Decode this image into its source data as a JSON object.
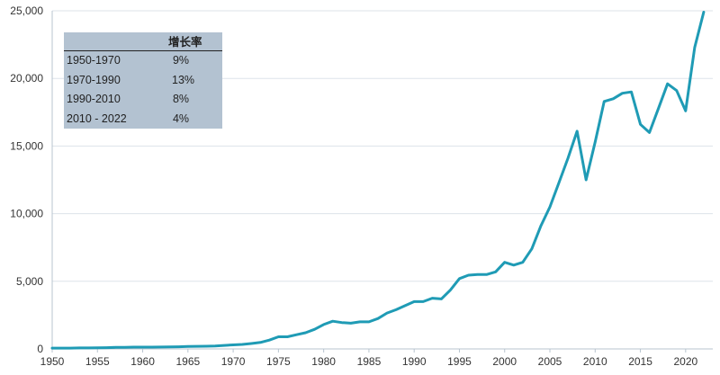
{
  "chart_data": {
    "type": "line",
    "title": "",
    "xlabel": "",
    "ylabel": "",
    "xlim": [
      1950,
      2023
    ],
    "ylim": [
      0,
      25000
    ],
    "x_ticks": [
      "1950",
      "1955",
      "1960",
      "1965",
      "1970",
      "1975",
      "1980",
      "1985",
      "1990",
      "1995",
      "2000",
      "2005",
      "2010",
      "2015",
      "2020"
    ],
    "y_ticks": [
      "0",
      "5,000",
      "10,000",
      "15,000",
      "20,000",
      "25,000"
    ],
    "grid": "horizontal",
    "color": "#1f9bb5",
    "series": [
      {
        "x": [
          1950,
          1951,
          1952,
          1953,
          1954,
          1955,
          1956,
          1957,
          1958,
          1959,
          1960,
          1961,
          1962,
          1963,
          1964,
          1965,
          1966,
          1967,
          1968,
          1969,
          1970,
          1971,
          1972,
          1973,
          1974,
          1975,
          1976,
          1977,
          1978,
          1979,
          1980,
          1981,
          1982,
          1983,
          1984,
          1985,
          1986,
          1987,
          1988,
          1989,
          1990,
          1991,
          1992,
          1993,
          1994,
          1995,
          1996,
          1997,
          1998,
          1999,
          2000,
          2001,
          2002,
          2003,
          2004,
          2005,
          2006,
          2007,
          2008,
          2009,
          2010,
          2011,
          2012,
          2013,
          2014,
          2015,
          2016,
          2017,
          2018,
          2019,
          2020,
          2021,
          2022
        ],
        "y": [
          60,
          60,
          60,
          70,
          70,
          80,
          90,
          110,
          120,
          130,
          130,
          130,
          140,
          150,
          160,
          180,
          190,
          200,
          220,
          260,
          300,
          330,
          400,
          480,
          650,
          900,
          900,
          1050,
          1200,
          1450,
          1800,
          2050,
          1950,
          1900,
          2000,
          2000,
          2250,
          2650,
          2900,
          3200,
          3500,
          3500,
          3750,
          3700,
          4350,
          5200,
          5450,
          5500,
          5500,
          5700,
          6400,
          6200,
          6400,
          7400,
          9100,
          10500,
          12300,
          14100,
          16100,
          12500,
          15300,
          18300,
          18500,
          18900,
          19000,
          16600,
          16000,
          17800,
          19600,
          19100,
          17600,
          22300,
          24900
        ]
      }
    ]
  },
  "inset_table": {
    "header": "增长率",
    "rows": [
      {
        "period": "1950-1970",
        "rate": "9%"
      },
      {
        "period": "1970-1990",
        "rate": "13%"
      },
      {
        "period": "1990-2010",
        "rate": "8%"
      },
      {
        "period": "2010 - 2022",
        "rate": "4%"
      }
    ]
  }
}
